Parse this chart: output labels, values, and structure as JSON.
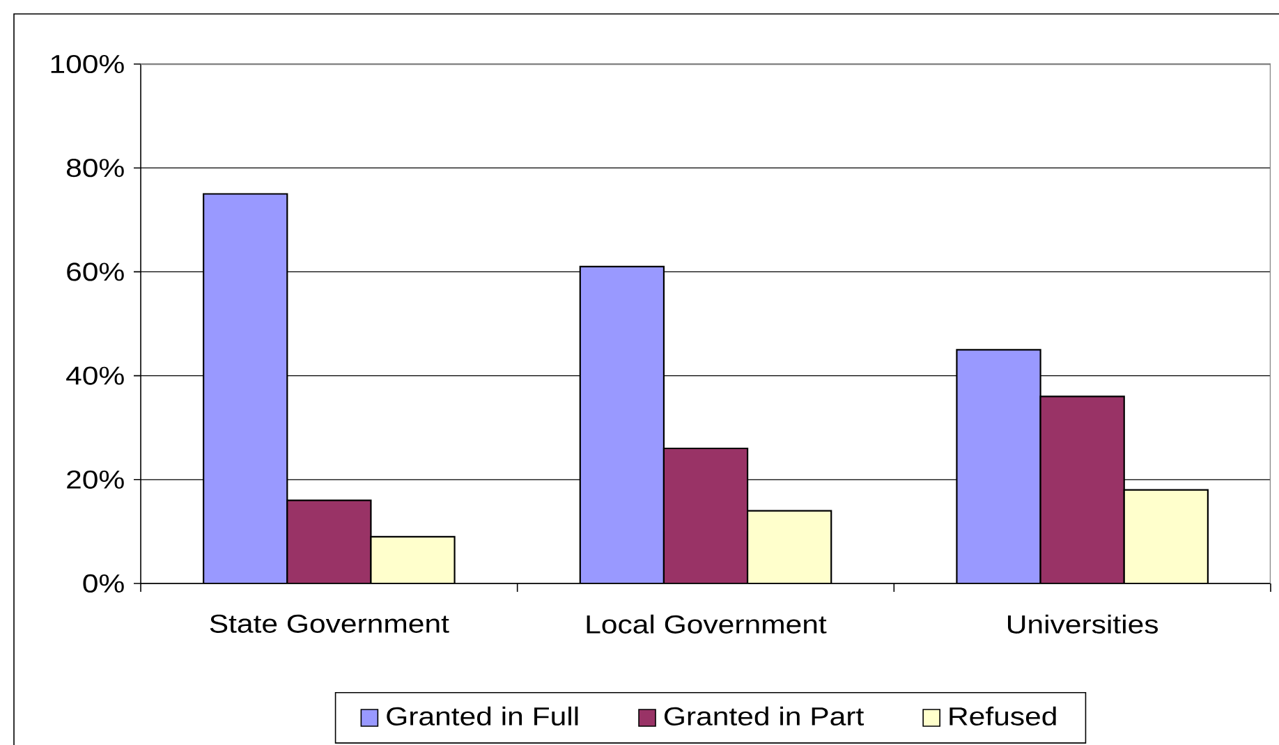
{
  "chart_data": {
    "type": "bar",
    "categories": [
      "State Government",
      "Local Government",
      "Universities"
    ],
    "series": [
      {
        "name": "Granted in Full",
        "color": "#9999ff",
        "values": [
          75,
          61,
          45
        ]
      },
      {
        "name": "Granted in Part",
        "color": "#993366",
        "values": [
          16,
          26,
          36
        ]
      },
      {
        "name": "Refused",
        "color": "#ffffcc",
        "values": [
          9,
          14,
          18
        ]
      }
    ],
    "ylim": [
      0,
      100
    ],
    "yticks": [
      {
        "value": 0,
        "label": "0%"
      },
      {
        "value": 20,
        "label": "20%"
      },
      {
        "value": 40,
        "label": "40%"
      },
      {
        "value": 60,
        "label": "60%"
      },
      {
        "value": 80,
        "label": "80%"
      },
      {
        "value": 100,
        "label": "100%"
      }
    ],
    "grid": "y",
    "legend": "bottom"
  }
}
